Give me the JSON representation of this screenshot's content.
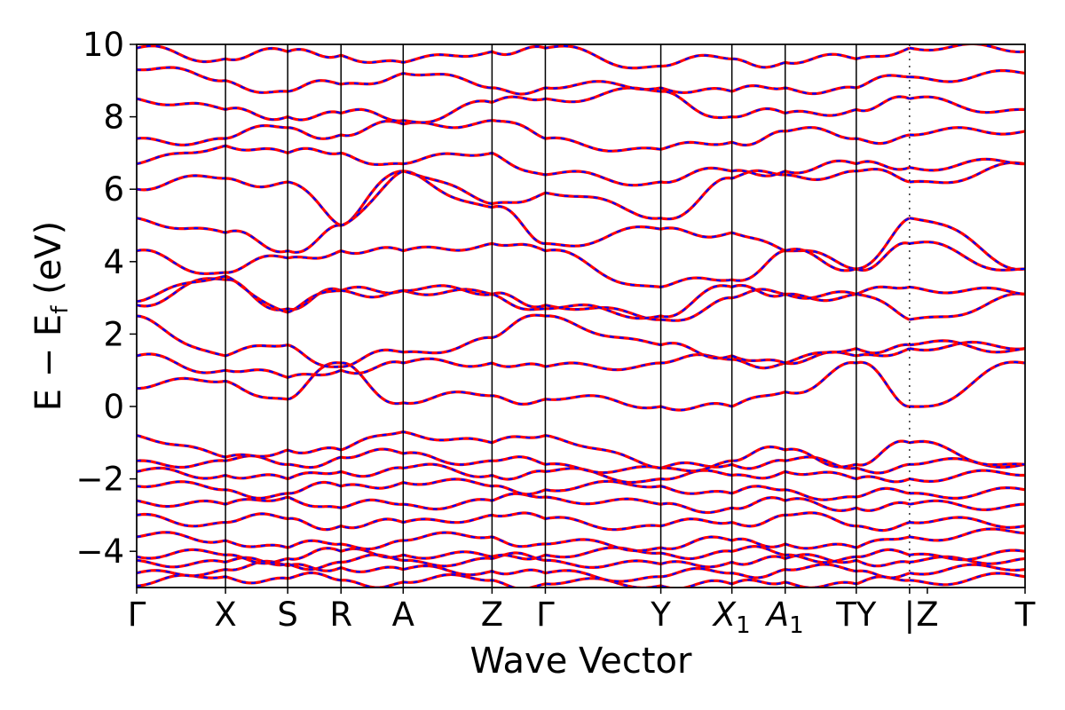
{
  "chart_data": {
    "type": "line",
    "xlabel": "Wave Vector",
    "ylabel_main": "E − E",
    "ylabel_sub": "f",
    "ylabel_unit": " (eV)",
    "ylim": [
      -5,
      10
    ],
    "yticks": [
      -4,
      -2,
      0,
      2,
      4,
      6,
      8,
      10
    ],
    "ytick_labels": [
      "−4",
      "−2",
      "0",
      "2",
      "4",
      "6",
      "8",
      "10"
    ],
    "kpath_labels": [
      {
        "main": "Γ",
        "sub": ""
      },
      {
        "main": "X",
        "sub": ""
      },
      {
        "main": "S",
        "sub": ""
      },
      {
        "main": "R",
        "sub": ""
      },
      {
        "main": "A",
        "sub": ""
      },
      {
        "main": "Z",
        "sub": ""
      },
      {
        "main": "Γ",
        "sub": ""
      },
      {
        "main": "Y",
        "sub": ""
      },
      {
        "main": "X",
        "sub": "1",
        "italic": true
      },
      {
        "main": "A",
        "sub": "1",
        "italic": true
      },
      {
        "main": "TY",
        "sub": ""
      },
      {
        "main": "|",
        "sub": ""
      },
      {
        "main": "Z",
        "sub": ""
      },
      {
        "main": "T",
        "sub": ""
      }
    ],
    "kpath_positions": [
      0,
      0.1,
      0.17,
      0.23,
      0.3,
      0.4,
      0.46,
      0.59,
      0.67,
      0.73,
      0.81,
      0.87,
      0.89,
      1.0
    ],
    "segment_bounds": [
      0,
      0.1,
      0.17,
      0.23,
      0.3,
      0.4,
      0.46,
      0.59,
      0.67,
      0.73,
      0.81,
      0.87,
      1.0
    ],
    "discontinuity_at": 0.87,
    "grid": false,
    "series_colors": {
      "primary": "#ff0000",
      "overlay": "#0000ff"
    },
    "series_style": {
      "primary": "solid",
      "overlay": "dashed"
    },
    "bands": [
      {
        "at_kpoints": [
          -4.95,
          -4.7,
          -4.75,
          -4.8,
          -4.85,
          -4.8,
          -4.9,
          -4.95,
          -4.9,
          -4.85,
          -4.9,
          -4.8,
          -4.7
        ]
      },
      {
        "at_kpoints": [
          -4.6,
          -4.5,
          -4.4,
          -4.45,
          -4.5,
          -4.55,
          -4.6,
          -4.7,
          -4.6,
          -4.5,
          -4.55,
          -4.6,
          -4.5
        ]
      },
      {
        "at_kpoints": [
          -4.25,
          -4.3,
          -4.35,
          -4.3,
          -4.25,
          -4.2,
          -4.25,
          -4.35,
          -4.3,
          -4.2,
          -4.25,
          -4.3,
          -4.2
        ]
      },
      {
        "at_kpoints": [
          -4.15,
          -4.1,
          -4.2,
          -4.0,
          -4.1,
          -4.15,
          -4.1,
          -4.05,
          -4.0,
          -4.1,
          -4.15,
          -4.1,
          -4.0
        ]
      },
      {
        "at_kpoints": [
          -3.6,
          -3.7,
          -3.9,
          -3.8,
          -3.7,
          -3.6,
          -3.8,
          -3.9,
          -3.7,
          -3.8,
          -3.9,
          -3.6,
          -3.5
        ]
      },
      {
        "at_kpoints": [
          -3.0,
          -3.2,
          -3.1,
          -3.3,
          -3.2,
          -3.0,
          -3.1,
          -3.3,
          -3.2,
          -3.0,
          -3.3,
          -3.2,
          -3.3
        ]
      },
      {
        "at_kpoints": [
          -2.6,
          -2.7,
          -2.5,
          -2.8,
          -2.7,
          -2.6,
          -2.5,
          -2.7,
          -2.8,
          -2.6,
          -2.8,
          -2.7,
          -2.7
        ]
      },
      {
        "at_kpoints": [
          -2.2,
          -2.3,
          -2.4,
          -2.2,
          -2.1,
          -2.2,
          -2.3,
          -2.2,
          -2.4,
          -2.3,
          -2.5,
          -2.4,
          -2.3
        ]
      },
      {
        "at_kpoints": [
          -1.8,
          -1.9,
          -2.0,
          -1.8,
          -1.7,
          -1.9,
          -1.8,
          -2.0,
          -1.9,
          -1.8,
          -2.0,
          -2.0,
          -1.9
        ]
      },
      {
        "at_kpoints": [
          -1.5,
          -1.5,
          -1.6,
          -1.4,
          -1.3,
          -1.5,
          -1.6,
          -1.7,
          -1.6,
          -1.5,
          -1.7,
          -1.6,
          -1.6
        ]
      },
      {
        "at_kpoints": [
          -0.8,
          -1.4,
          -1.2,
          -1.2,
          -0.7,
          -1.0,
          -0.8,
          -1.7,
          -1.5,
          -1.2,
          -1.6,
          -1.0,
          -1.6
        ]
      },
      {
        "at_kpoints": [
          0.5,
          0.7,
          0.2,
          1.2,
          0.1,
          0.3,
          0.2,
          0.0,
          0.0,
          0.4,
          1.2,
          0.0,
          1.2
        ]
      },
      {
        "at_kpoints": [
          1.4,
          1.0,
          0.8,
          1.0,
          1.2,
          1.2,
          1.1,
          1.2,
          1.3,
          1.2,
          1.4,
          1.6,
          1.6
        ]
      },
      {
        "at_kpoints": [
          2.5,
          1.4,
          1.7,
          1.1,
          1.5,
          1.9,
          2.5,
          1.7,
          1.4,
          1.2,
          1.6,
          1.7,
          1.6
        ]
      },
      {
        "at_kpoints": [
          2.8,
          3.5,
          2.7,
          3.2,
          3.2,
          3.1,
          2.8,
          2.4,
          3.0,
          3.1,
          3.1,
          2.4,
          3.1
        ]
      },
      {
        "at_kpoints": [
          2.9,
          3.6,
          2.6,
          3.2,
          3.2,
          3.1,
          2.7,
          2.5,
          3.3,
          3.1,
          3.1,
          3.3,
          3.1
        ]
      },
      {
        "at_kpoints": [
          4.3,
          3.7,
          4.1,
          4.3,
          4.3,
          4.5,
          4.3,
          3.3,
          3.5,
          4.3,
          3.8,
          5.2,
          3.8
        ]
      },
      {
        "at_kpoints": [
          5.2,
          4.8,
          4.3,
          5.0,
          6.5,
          5.5,
          4.5,
          4.9,
          4.8,
          4.3,
          3.8,
          4.5,
          3.8
        ]
      },
      {
        "at_kpoints": [
          6.0,
          6.3,
          6.2,
          5.0,
          6.5,
          5.6,
          5.9,
          5.2,
          6.3,
          6.4,
          6.5,
          6.2,
          6.7
        ]
      },
      {
        "at_kpoints": [
          6.7,
          7.2,
          7.0,
          7.0,
          6.7,
          7.0,
          6.4,
          6.2,
          6.5,
          6.5,
          6.7,
          6.6,
          6.7
        ]
      },
      {
        "at_kpoints": [
          7.4,
          7.4,
          7.7,
          7.5,
          7.8,
          7.9,
          7.4,
          7.1,
          7.3,
          7.6,
          7.4,
          7.5,
          7.6
        ]
      },
      {
        "at_kpoints": [
          8.5,
          8.2,
          8.0,
          8.1,
          7.9,
          8.4,
          8.5,
          8.7,
          8.0,
          8.1,
          8.2,
          8.5,
          8.2
        ]
      },
      {
        "at_kpoints": [
          9.3,
          9.0,
          8.7,
          8.9,
          9.2,
          8.8,
          8.8,
          8.8,
          8.7,
          8.8,
          8.8,
          9.1,
          9.2
        ]
      },
      {
        "at_kpoints": [
          9.9,
          9.6,
          9.8,
          9.7,
          9.5,
          9.8,
          9.9,
          9.4,
          9.6,
          9.5,
          9.6,
          9.9,
          9.8
        ]
      }
    ]
  }
}
